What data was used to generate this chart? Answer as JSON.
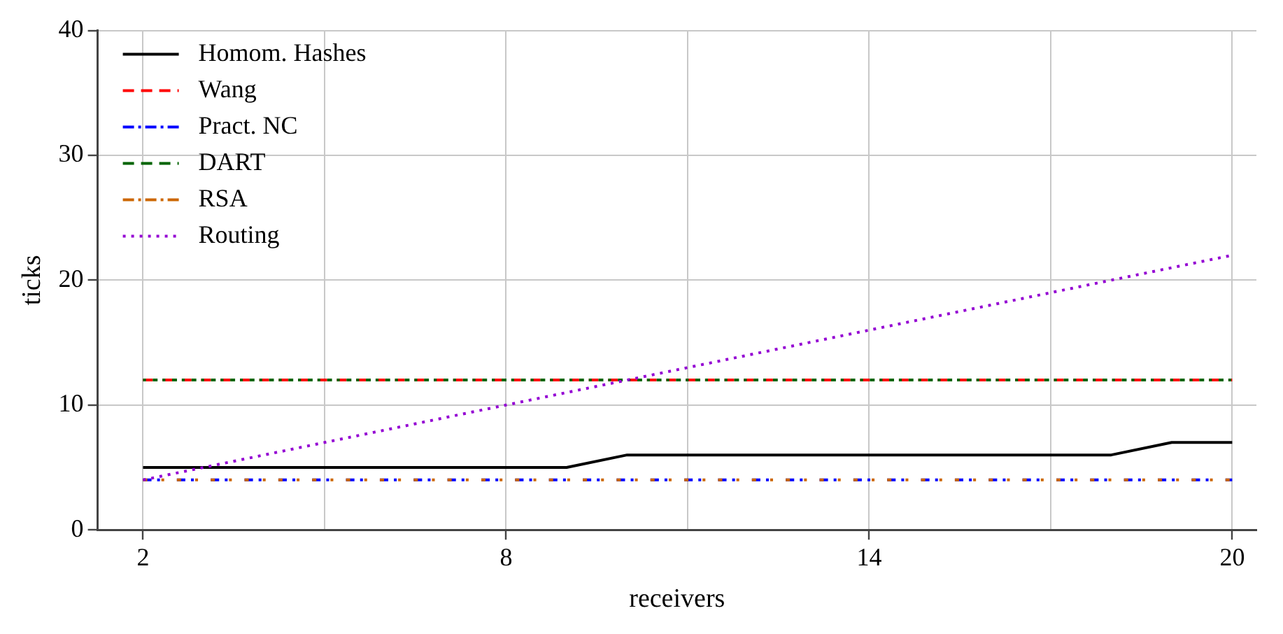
{
  "chart_data": {
    "type": "line",
    "xlabel": "receivers",
    "ylabel": "ticks",
    "x": [
      2,
      3,
      4,
      5,
      6,
      7,
      8,
      9,
      10,
      11,
      12,
      13,
      14,
      15,
      16,
      17,
      18,
      19,
      20
    ],
    "series": [
      {
        "name": "Homom. Hashes",
        "color": "#000000",
        "line_style": "solid",
        "values": [
          5,
          5,
          5,
          5,
          5,
          5,
          5,
          5,
          6,
          6,
          6,
          6,
          6,
          6,
          6,
          6,
          6,
          7,
          7
        ]
      },
      {
        "name": "Wang",
        "color": "#ff0000",
        "line_style": "dashed",
        "values": [
          12,
          12,
          12,
          12,
          12,
          12,
          12,
          12,
          12,
          12,
          12,
          12,
          12,
          12,
          12,
          12,
          12,
          12,
          12
        ]
      },
      {
        "name": "Pract. NC",
        "color": "#0000ff",
        "line_style": "dashdot",
        "values": [
          4,
          4,
          4,
          4,
          4,
          4,
          4,
          4,
          4,
          4,
          4,
          4,
          4,
          4,
          4,
          4,
          4,
          4,
          4
        ]
      },
      {
        "name": "DART",
        "color": "#006400",
        "line_style": "dashed",
        "values": [
          12,
          12,
          12,
          12,
          12,
          12,
          12,
          12,
          12,
          12,
          12,
          12,
          12,
          12,
          12,
          12,
          12,
          12,
          12
        ]
      },
      {
        "name": "RSA",
        "color": "#cc6600",
        "line_style": "dashdot",
        "values": [
          4,
          4,
          4,
          4,
          4,
          4,
          4,
          4,
          4,
          4,
          4,
          4,
          4,
          4,
          4,
          4,
          4,
          4,
          4
        ]
      },
      {
        "name": "Routing",
        "color": "#9400d3",
        "line_style": "dotted",
        "values": [
          4,
          5,
          6,
          7,
          8,
          9,
          10,
          11,
          12,
          13,
          14,
          15,
          16,
          17,
          18,
          19,
          20,
          21,
          22
        ]
      }
    ],
    "xlim": [
      1.25,
      20.4
    ],
    "xticks": [
      2,
      {
        "value": 5,
        "label": null
      },
      8,
      {
        "value": 11,
        "label": null
      },
      14,
      {
        "value": 17,
        "label": null
      },
      20
    ],
    "ylim": [
      0,
      40
    ],
    "yticks": [
      0,
      10,
      20,
      30,
      40
    ],
    "grid": true,
    "legend": "top left",
    "marker": "none"
  }
}
